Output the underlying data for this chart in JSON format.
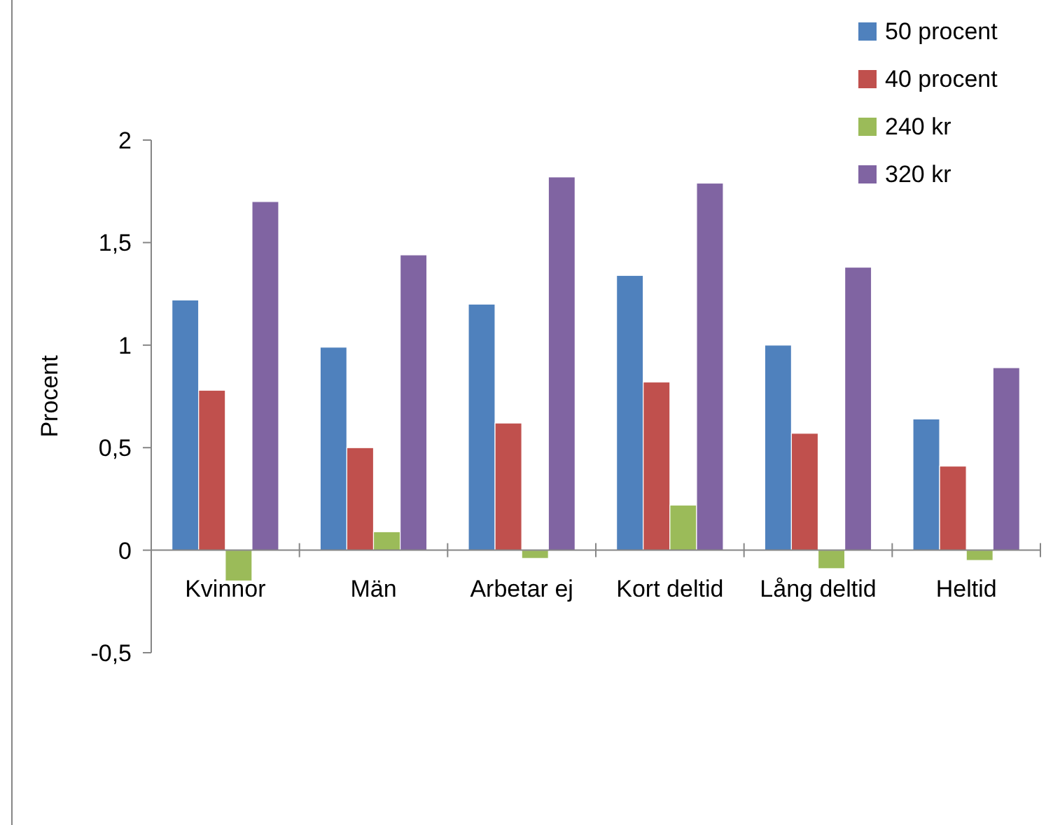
{
  "chart_data": {
    "type": "bar",
    "ylabel": "Procent",
    "categories": [
      "Kvinnor",
      "Män",
      "Arbetar ej",
      "Kort deltid",
      "Lång deltid",
      "Heltid"
    ],
    "series": [
      {
        "name": "50 procent",
        "color": "#4f81bd",
        "values": [
          1.22,
          0.99,
          1.2,
          1.34,
          1.0,
          0.64
        ]
      },
      {
        "name": "40 procent",
        "color": "#c0504d",
        "values": [
          0.78,
          0.5,
          0.62,
          0.82,
          0.57,
          0.41
        ]
      },
      {
        "name": "240 kr",
        "color": "#9bbb59",
        "values": [
          -0.15,
          0.09,
          -0.04,
          0.22,
          -0.09,
          -0.05
        ]
      },
      {
        "name": "320 kr",
        "color": "#8064a2",
        "values": [
          1.7,
          1.44,
          1.82,
          1.79,
          1.38,
          0.89
        ]
      }
    ],
    "ylim": [
      -0.5,
      2
    ],
    "yticks": [
      {
        "value": -0.5,
        "label": "-0,5"
      },
      0,
      {
        "value": 0.5,
        "label": "0,5"
      },
      1,
      {
        "value": 1.5,
        "label": "1,5"
      },
      2
    ],
    "grid": false,
    "legend": "top right"
  }
}
